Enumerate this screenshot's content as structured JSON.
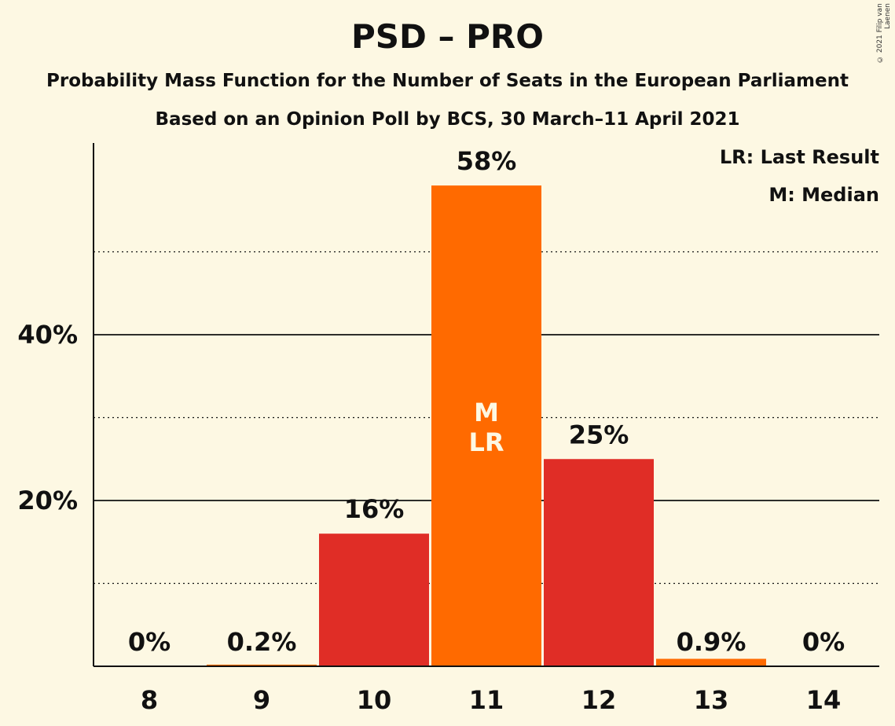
{
  "header": {
    "title": "PSD – PRO",
    "subtitle1": "Probability Mass Function for the Number of Seats in the European Parliament",
    "subtitle2": "Based on an Opinion Poll by BCS, 30 March–11 April 2021",
    "copyright": "© 2021 Filip van Laenen"
  },
  "legend": {
    "last_result": "LR: Last Result",
    "median": "M: Median"
  },
  "chart_data": {
    "type": "bar",
    "title": "PSD – PRO",
    "xlabel": "",
    "ylabel": "",
    "categories": [
      "8",
      "9",
      "10",
      "11",
      "12",
      "13",
      "14"
    ],
    "values": [
      0,
      0.2,
      16,
      58,
      25,
      0.9,
      0
    ],
    "value_labels": [
      "0%",
      "0.2%",
      "16%",
      "58%",
      "25%",
      "0.9%",
      "0%"
    ],
    "bar_colors": [
      "#e02d26",
      "#ff6a00",
      "#e02d26",
      "#ff6a00",
      "#e02d26",
      "#ff6a00",
      "#e02d26"
    ],
    "ylim": [
      0,
      63
    ],
    "yticks": [
      20,
      40
    ],
    "ytick_labels": [
      "20%",
      "40%"
    ],
    "minor_gridlines": [
      10,
      30,
      50
    ],
    "median_category": "11",
    "last_result_category": "11",
    "in_bar_labels": [
      "M",
      "LR"
    ],
    "legend_position": "top-right",
    "colors": {
      "background": "#fdf8e3",
      "red": "#e02d26",
      "orange": "#ff6a00",
      "axis": "#111111"
    }
  }
}
